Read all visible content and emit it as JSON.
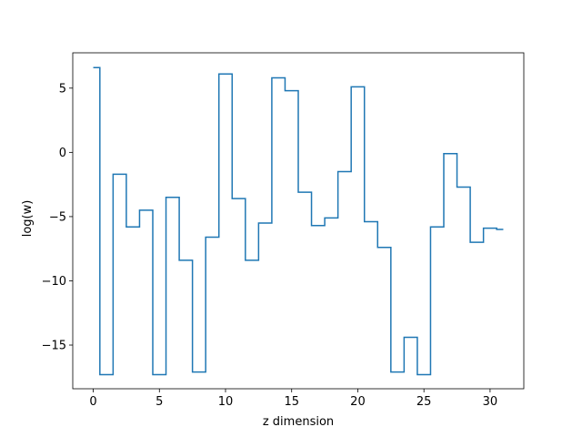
{
  "chart_data": {
    "type": "line",
    "drawstyle": "steps-mid",
    "title": "",
    "xlabel": "z dimension",
    "ylabel": "log(w)",
    "xlim": [
      -1.55,
      32.55
    ],
    "ylim": [
      -18.4,
      7.75
    ],
    "xticks": [
      0,
      5,
      10,
      15,
      20,
      25,
      30
    ],
    "yticks": [
      5,
      0,
      -5,
      -10,
      -15
    ],
    "ytick_labels": [
      "5",
      "0",
      "−5",
      "−10",
      "−15"
    ],
    "grid": false,
    "legend": "none",
    "series": [
      {
        "color": "#1f77b4",
        "x": [
          0,
          1,
          2,
          3,
          4,
          5,
          6,
          7,
          8,
          9,
          10,
          11,
          12,
          13,
          14,
          15,
          16,
          17,
          18,
          19,
          20,
          21,
          22,
          23,
          24,
          25,
          26,
          27,
          28,
          29,
          30,
          31
        ],
        "y": [
          6.6,
          -17.3,
          -1.7,
          -5.8,
          -4.5,
          -17.3,
          -3.5,
          -8.4,
          -17.1,
          -6.6,
          6.1,
          -3.6,
          -8.4,
          -5.5,
          5.8,
          4.8,
          -3.1,
          -5.7,
          -5.1,
          -1.5,
          5.1,
          -5.4,
          -7.4,
          -17.1,
          -14.4,
          -17.3,
          -5.8,
          -0.1,
          -2.7,
          -7.0,
          -5.9,
          -6.0
        ]
      }
    ]
  }
}
